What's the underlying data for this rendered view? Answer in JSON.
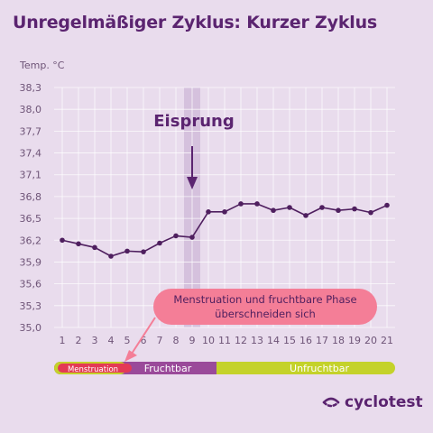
{
  "title": "Unregelmäßiger Zyklus: Kurzer Zyklus",
  "unit_label": "Temp. °C",
  "brand": "cyclotest",
  "colors": {
    "line": "#4f1f5f",
    "ovulation_band": "#d5c1dd",
    "callout_fill": "#f47e97",
    "menstruation": "#e43a55",
    "fruchtbar": "#9a4a9a",
    "unfruchtbar": "#c4d22a"
  },
  "chart_data": {
    "type": "line",
    "title": "Unregelmäßiger Zyklus: Kurzer Zyklus",
    "ylabel": "Temp. °C",
    "xlabel": "",
    "ylim": [
      35.0,
      38.3
    ],
    "y_ticks": [
      "35,0",
      "35,3",
      "35,6",
      "35,9",
      "36,2",
      "36,5",
      "36,8",
      "37,1",
      "37,4",
      "37,7",
      "38,0",
      "38,3"
    ],
    "y_tick_values": [
      35.0,
      35.3,
      35.6,
      35.9,
      36.2,
      36.5,
      36.8,
      37.1,
      37.4,
      37.7,
      38.0,
      38.3
    ],
    "x": [
      1,
      2,
      3,
      4,
      5,
      6,
      7,
      8,
      9,
      10,
      11,
      12,
      13,
      14,
      15,
      16,
      17,
      18,
      19,
      20,
      21
    ],
    "series": [
      {
        "values": [
          36.2,
          36.15,
          36.1,
          35.98,
          36.05,
          36.04,
          36.16,
          36.26,
          36.24,
          36.59,
          36.59,
          36.7,
          36.7,
          36.61,
          36.65,
          36.54,
          36.65,
          36.61,
          36.63,
          36.58,
          36.68
        ]
      }
    ],
    "ovulation_day": 9,
    "annotations": {
      "ovulation_label": "Eisprung",
      "overlap_line1": "Menstruation und fruchtbare Phase",
      "overlap_line2": "überschneiden sich"
    },
    "phases": [
      {
        "label": "Menstruation",
        "from": 1,
        "to": 4.5
      },
      {
        "label": "Fruchtbar",
        "from": 4.5,
        "to": 10
      },
      {
        "label": "Unfruchtbar",
        "from": 10,
        "to": 21
      }
    ],
    "grid": true
  }
}
